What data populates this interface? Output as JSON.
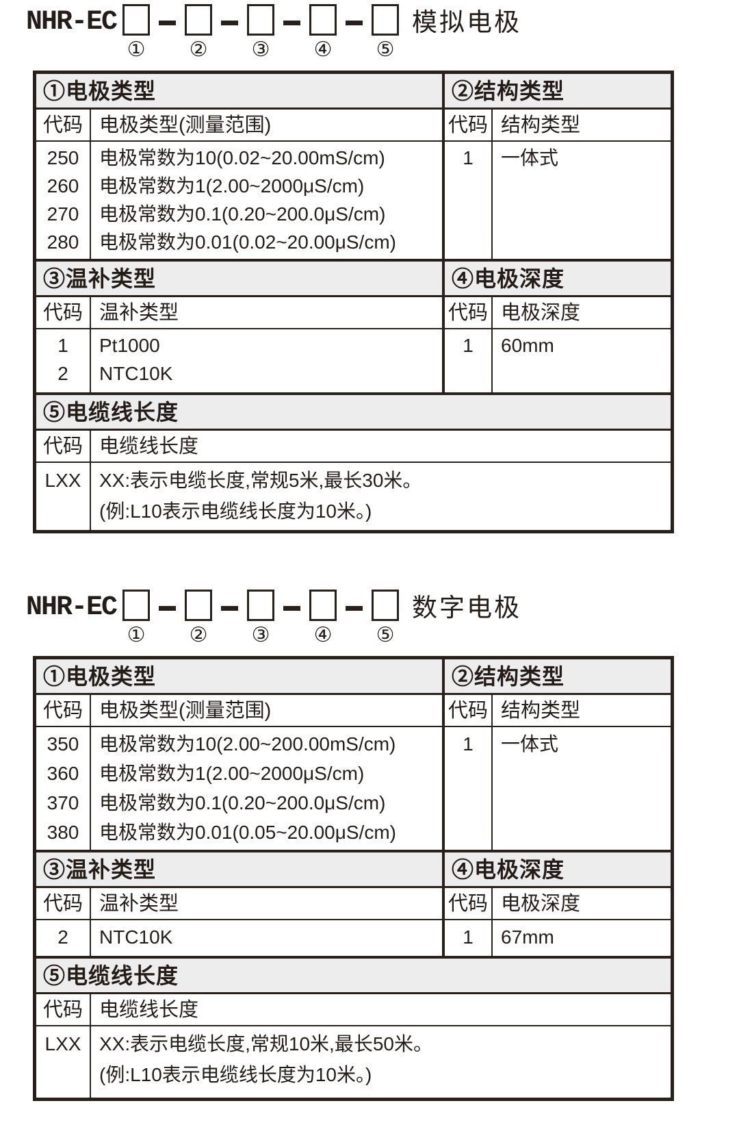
{
  "colors": {
    "border": "#2a201b",
    "header_bg": "#ededed",
    "text": "#241c18"
  },
  "analog": {
    "model_prefix": "NHR-EC",
    "model_suffix": "模拟电极",
    "positions": [
      "①",
      "②",
      "③",
      "④",
      "⑤"
    ],
    "sec1": {
      "title": "①电极类型",
      "col_code": "代码",
      "col_desc": "电极类型(测量范围)",
      "rows": [
        {
          "code": "250",
          "desc": "电极常数为10(0.02~20.00mS/cm)"
        },
        {
          "code": "260",
          "desc": "电极常数为1(2.00~2000μS/cm)"
        },
        {
          "code": "270",
          "desc": "电极常数为0.1(0.20~200.0μS/cm)"
        },
        {
          "code": "280",
          "desc": "电极常数为0.01(0.02~20.00μS/cm)"
        }
      ]
    },
    "sec2": {
      "title": "②结构类型",
      "col_code": "代码",
      "col_desc": "结构类型",
      "rows": [
        {
          "code": "1",
          "desc": "一体式"
        }
      ]
    },
    "sec3": {
      "title": "③温补类型",
      "col_code": "代码",
      "col_desc": "温补类型",
      "rows": [
        {
          "code": "1",
          "desc": "Pt1000"
        },
        {
          "code": "2",
          "desc": "NTC10K"
        }
      ]
    },
    "sec4": {
      "title": "④电极深度",
      "col_code": "代码",
      "col_desc": "电极深度",
      "rows": [
        {
          "code": "1",
          "desc": "60mm"
        }
      ]
    },
    "sec5": {
      "title": "⑤电缆线长度",
      "col_code": "代码",
      "col_desc": "电缆线长度",
      "code": "LXX",
      "desc_line1": "XX:表示电缆长度,常规5米,最长30米。",
      "desc_line2": "(例:L10表示电缆线长度为10米。)"
    }
  },
  "digital": {
    "model_prefix": "NHR-EC",
    "model_suffix": "数字电极",
    "positions": [
      "①",
      "②",
      "③",
      "④",
      "⑤"
    ],
    "sec1": {
      "title": "①电极类型",
      "col_code": "代码",
      "col_desc": "电极类型(测量范围)",
      "rows": [
        {
          "code": "350",
          "desc": "电极常数为10(2.00~200.00mS/cm)"
        },
        {
          "code": "360",
          "desc": "电极常数为1(2.00~2000μS/cm)"
        },
        {
          "code": "370",
          "desc": "电极常数为0.1(0.20~200.0μS/cm)"
        },
        {
          "code": "380",
          "desc": "电极常数为0.01(0.05~20.00μS/cm)"
        }
      ]
    },
    "sec2": {
      "title": "②结构类型",
      "col_code": "代码",
      "col_desc": "结构类型",
      "rows": [
        {
          "code": "1",
          "desc": "一体式"
        }
      ]
    },
    "sec3": {
      "title": "③温补类型",
      "col_code": "代码",
      "col_desc": "温补类型",
      "rows": [
        {
          "code": "2",
          "desc": "NTC10K"
        }
      ]
    },
    "sec4": {
      "title": "④电极深度",
      "col_code": "代码",
      "col_desc": "电极深度",
      "rows": [
        {
          "code": "1",
          "desc": "67mm"
        }
      ]
    },
    "sec5": {
      "title": "⑤电缆线长度",
      "col_code": "代码",
      "col_desc": "电缆线长度",
      "code": "LXX",
      "desc_line1": "XX:表示电缆长度,常规10米,最长50米。",
      "desc_line2": "(例:L10表示电缆线长度为10米。)"
    }
  }
}
